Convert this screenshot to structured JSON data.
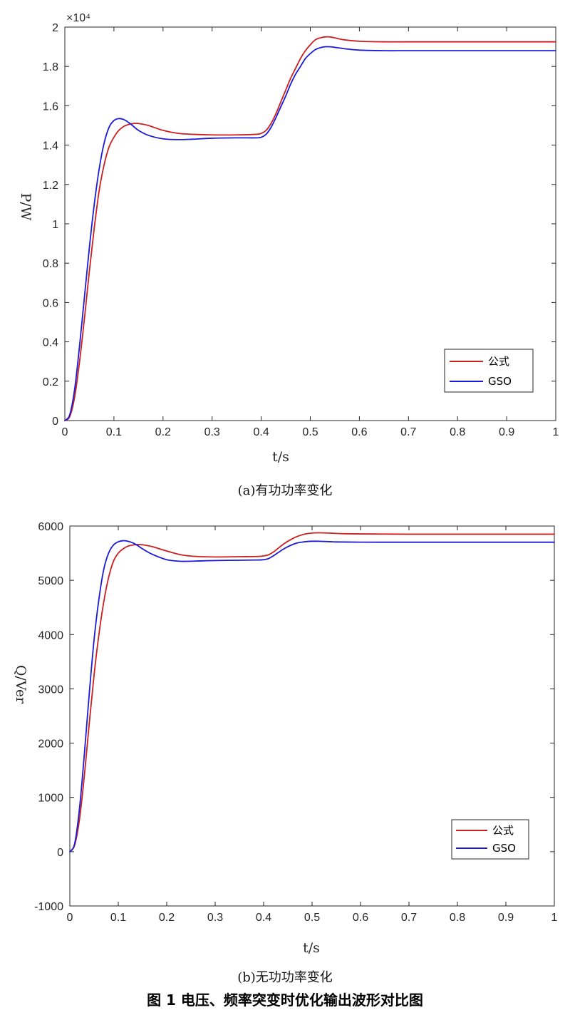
{
  "figure_caption": "图 1 电压、频率突变时优化输出波形对比图",
  "series_colors": {
    "公式": "#cc1f1f",
    "GSO": "#1a1adb"
  },
  "chart_data": [
    {
      "type": "line",
      "caption": "(a)有功功率变化",
      "xlabel": "t/s",
      "ylabel": "P/W",
      "exponent_label": "×10⁴",
      "xlim": [
        0,
        1
      ],
      "ylim": [
        0,
        2
      ],
      "xticks": [
        0,
        0.1,
        0.2,
        0.3,
        0.4,
        0.5,
        0.6,
        0.7,
        0.8,
        0.9,
        1
      ],
      "xtick_labels": [
        "0",
        "0.1",
        "0.2",
        "0.3",
        "0.4",
        "0.5",
        "0.6",
        "0.7",
        "0.8",
        "0.9",
        "1"
      ],
      "yticks": [
        0,
        0.2,
        0.4,
        0.6,
        0.8,
        1,
        1.2,
        1.4,
        1.6,
        1.8,
        2
      ],
      "ytick_labels": [
        "0",
        "0.2",
        "0.4",
        "0.6",
        "0.8",
        "1",
        "1.2",
        "1.4",
        "1.6",
        "1.8",
        "2"
      ],
      "grid": false,
      "legend_position": "bottom-right",
      "series": [
        {
          "name": "公式",
          "color": "#cc1f1f",
          "x": [
            0,
            0.01,
            0.02,
            0.03,
            0.04,
            0.05,
            0.06,
            0.07,
            0.08,
            0.09,
            0.1,
            0.11,
            0.12,
            0.13,
            0.14,
            0.15,
            0.17,
            0.2,
            0.23,
            0.26,
            0.3,
            0.35,
            0.39,
            0.4,
            0.41,
            0.42,
            0.43,
            0.44,
            0.45,
            0.46,
            0.47,
            0.48,
            0.49,
            0.5,
            0.51,
            0.52,
            0.53,
            0.54,
            0.55,
            0.57,
            0.6,
            0.65,
            0.7,
            0.8,
            0.9,
            1.0
          ],
          "y": [
            0,
            0.02,
            0.12,
            0.3,
            0.52,
            0.76,
            0.98,
            1.17,
            1.3,
            1.39,
            1.44,
            1.475,
            1.495,
            1.505,
            1.51,
            1.51,
            1.5,
            1.475,
            1.46,
            1.455,
            1.452,
            1.452,
            1.455,
            1.46,
            1.475,
            1.51,
            1.56,
            1.62,
            1.68,
            1.74,
            1.79,
            1.84,
            1.88,
            1.91,
            1.935,
            1.945,
            1.95,
            1.95,
            1.945,
            1.935,
            1.928,
            1.925,
            1.925,
            1.925,
            1.925,
            1.925
          ]
        },
        {
          "name": "GSO",
          "color": "#1a1adb",
          "x": [
            0,
            0.01,
            0.02,
            0.03,
            0.04,
            0.05,
            0.06,
            0.07,
            0.08,
            0.09,
            0.1,
            0.11,
            0.12,
            0.13,
            0.14,
            0.15,
            0.17,
            0.2,
            0.23,
            0.26,
            0.3,
            0.35,
            0.39,
            0.4,
            0.41,
            0.42,
            0.43,
            0.44,
            0.45,
            0.46,
            0.47,
            0.48,
            0.49,
            0.5,
            0.51,
            0.52,
            0.53,
            0.54,
            0.55,
            0.57,
            0.6,
            0.65,
            0.7,
            0.8,
            0.9,
            1.0
          ],
          "y": [
            0,
            0.03,
            0.16,
            0.38,
            0.63,
            0.88,
            1.1,
            1.28,
            1.41,
            1.49,
            1.525,
            1.535,
            1.53,
            1.515,
            1.495,
            1.475,
            1.45,
            1.432,
            1.428,
            1.43,
            1.435,
            1.437,
            1.437,
            1.44,
            1.455,
            1.49,
            1.54,
            1.595,
            1.65,
            1.71,
            1.76,
            1.8,
            1.84,
            1.865,
            1.885,
            1.895,
            1.9,
            1.9,
            1.897,
            1.89,
            1.883,
            1.88,
            1.88,
            1.88,
            1.88,
            1.88
          ]
        }
      ]
    },
    {
      "type": "line",
      "caption": "(b)无功功率变化",
      "xlabel": "t/s",
      "ylabel": "Q/Ver",
      "xlim": [
        0,
        1
      ],
      "ylim": [
        -1000,
        6000
      ],
      "xticks": [
        0,
        0.1,
        0.2,
        0.3,
        0.4,
        0.5,
        0.6,
        0.7,
        0.8,
        0.9,
        1
      ],
      "xtick_labels": [
        "0",
        "0.1",
        "0.2",
        "0.3",
        "0.4",
        "0.5",
        "0.6",
        "0.7",
        "0.8",
        "0.9",
        "1"
      ],
      "yticks": [
        -1000,
        0,
        1000,
        2000,
        3000,
        4000,
        5000,
        6000
      ],
      "ytick_labels": [
        "-1000",
        "0",
        "1000",
        "2000",
        "3000",
        "4000",
        "5000",
        "6000"
      ],
      "grid": false,
      "legend_position": "lower-right",
      "series": [
        {
          "name": "公式",
          "color": "#cc1f1f",
          "x": [
            0,
            0.01,
            0.02,
            0.03,
            0.04,
            0.05,
            0.06,
            0.07,
            0.08,
            0.09,
            0.1,
            0.11,
            0.12,
            0.13,
            0.14,
            0.15,
            0.17,
            0.2,
            0.23,
            0.26,
            0.3,
            0.35,
            0.39,
            0.4,
            0.41,
            0.42,
            0.43,
            0.44,
            0.45,
            0.46,
            0.47,
            0.48,
            0.49,
            0.5,
            0.51,
            0.52,
            0.53,
            0.54,
            0.55,
            0.57,
            0.6,
            0.65,
            0.7,
            0.8,
            0.9,
            1.0
          ],
          "y": [
            0,
            120,
            600,
            1400,
            2350,
            3250,
            4000,
            4600,
            5050,
            5350,
            5500,
            5580,
            5630,
            5650,
            5660,
            5655,
            5620,
            5540,
            5470,
            5440,
            5430,
            5435,
            5440,
            5450,
            5470,
            5520,
            5590,
            5660,
            5720,
            5770,
            5810,
            5840,
            5860,
            5870,
            5875,
            5875,
            5872,
            5868,
            5864,
            5858,
            5855,
            5852,
            5850,
            5850,
            5850,
            5850
          ]
        },
        {
          "name": "GSO",
          "color": "#1a1adb",
          "x": [
            0,
            0.01,
            0.02,
            0.03,
            0.04,
            0.05,
            0.06,
            0.07,
            0.08,
            0.09,
            0.1,
            0.11,
            0.12,
            0.13,
            0.14,
            0.15,
            0.17,
            0.2,
            0.23,
            0.26,
            0.3,
            0.35,
            0.39,
            0.4,
            0.41,
            0.42,
            0.43,
            0.44,
            0.45,
            0.46,
            0.47,
            0.48,
            0.49,
            0.5,
            0.51,
            0.52,
            0.53,
            0.54,
            0.55,
            0.57,
            0.6,
            0.65,
            0.7,
            0.8,
            0.9,
            1.0
          ],
          "y": [
            0,
            150,
            800,
            1800,
            2900,
            3900,
            4650,
            5200,
            5500,
            5650,
            5710,
            5730,
            5720,
            5690,
            5640,
            5580,
            5480,
            5380,
            5350,
            5355,
            5365,
            5370,
            5375,
            5380,
            5400,
            5450,
            5510,
            5570,
            5620,
            5660,
            5690,
            5705,
            5715,
            5720,
            5720,
            5718,
            5714,
            5710,
            5707,
            5705,
            5703,
            5702,
            5702,
            5702,
            5702,
            5702
          ]
        }
      ]
    }
  ]
}
